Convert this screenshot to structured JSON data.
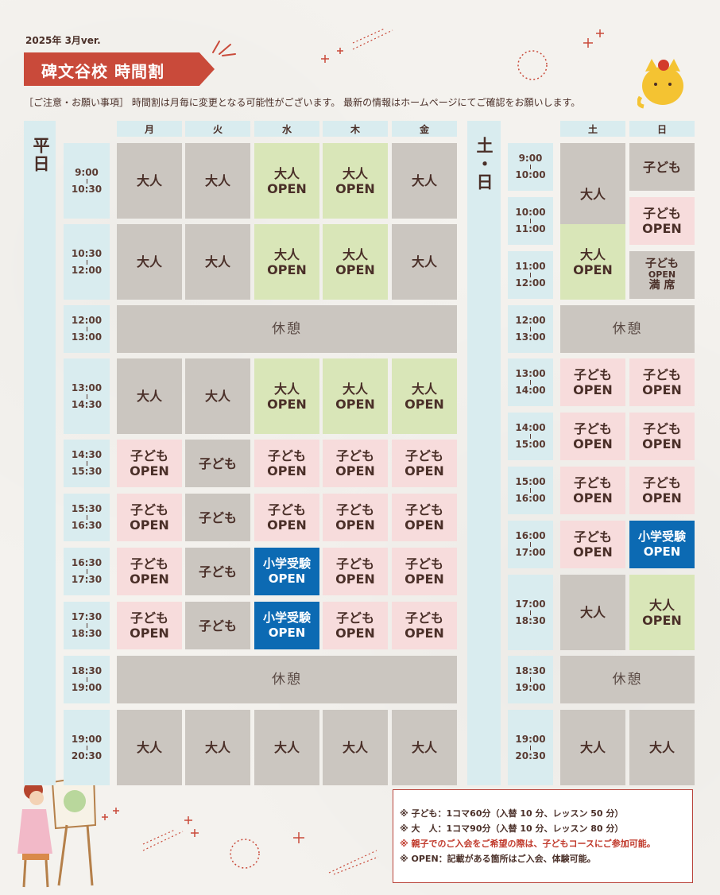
{
  "header": {
    "version": "2025年 3月ver.",
    "title": "碑文谷校 時間割",
    "notice": "［ご注意・お願い事項］ 時間割は月毎に変更となる可能性がございます。 最新の情報はホームページにてご確認をお願いします。"
  },
  "weekday": {
    "label": "平日",
    "days": [
      "月",
      "火",
      "水",
      "木",
      "金"
    ],
    "times": [
      [
        "9:00",
        "10:30"
      ],
      [
        "10:30",
        "12:00"
      ],
      [
        "12:00",
        "13:00"
      ],
      [
        "13:00",
        "14:30"
      ],
      [
        "14:30",
        "15:30"
      ],
      [
        "15:30",
        "16:30"
      ],
      [
        "16:30",
        "17:30"
      ],
      [
        "17:30",
        "18:30"
      ],
      [
        "18:30",
        "19:00"
      ],
      [
        "19:00",
        "20:30"
      ]
    ],
    "rest": "休憩",
    "rows": [
      [
        {
          "t": "大人",
          "c": "gray"
        },
        {
          "t": "大人",
          "c": "gray"
        },
        {
          "t": "大人",
          "t2": "OPEN",
          "c": "green"
        },
        {
          "t": "大人",
          "t2": "OPEN",
          "c": "green"
        },
        {
          "t": "大人",
          "c": "gray"
        }
      ],
      [
        {
          "t": "大人",
          "c": "gray"
        },
        {
          "t": "大人",
          "c": "gray"
        },
        {
          "t": "大人",
          "t2": "OPEN",
          "c": "green"
        },
        {
          "t": "大人",
          "t2": "OPEN",
          "c": "green"
        },
        {
          "t": "大人",
          "c": "gray"
        }
      ],
      [],
      [
        {
          "t": "大人",
          "c": "gray"
        },
        {
          "t": "大人",
          "c": "gray"
        },
        {
          "t": "大人",
          "t2": "OPEN",
          "c": "green"
        },
        {
          "t": "大人",
          "t2": "OPEN",
          "c": "green"
        },
        {
          "t": "大人",
          "t2": "OPEN",
          "c": "green"
        }
      ],
      [
        {
          "t": "子ども",
          "t2": "OPEN",
          "c": "pink"
        },
        {
          "t": "子ども",
          "c": "gray"
        },
        {
          "t": "子ども",
          "t2": "OPEN",
          "c": "pink"
        },
        {
          "t": "子ども",
          "t2": "OPEN",
          "c": "pink"
        },
        {
          "t": "子ども",
          "t2": "OPEN",
          "c": "pink"
        }
      ],
      [
        {
          "t": "子ども",
          "t2": "OPEN",
          "c": "pink"
        },
        {
          "t": "子ども",
          "c": "gray"
        },
        {
          "t": "子ども",
          "t2": "OPEN",
          "c": "pink"
        },
        {
          "t": "子ども",
          "t2": "OPEN",
          "c": "pink"
        },
        {
          "t": "子ども",
          "t2": "OPEN",
          "c": "pink"
        }
      ],
      [
        {
          "t": "子ども",
          "t2": "OPEN",
          "c": "pink"
        },
        {
          "t": "子ども",
          "c": "gray"
        },
        {
          "t": "小学受験",
          "t2": "OPEN",
          "c": "blue"
        },
        {
          "t": "子ども",
          "t2": "OPEN",
          "c": "pink"
        },
        {
          "t": "子ども",
          "t2": "OPEN",
          "c": "pink"
        }
      ],
      [
        {
          "t": "子ども",
          "t2": "OPEN",
          "c": "pink"
        },
        {
          "t": "子ども",
          "c": "gray"
        },
        {
          "t": "小学受験",
          "t2": "OPEN",
          "c": "blue"
        },
        {
          "t": "子ども",
          "t2": "OPEN",
          "c": "pink"
        },
        {
          "t": "子ども",
          "t2": "OPEN",
          "c": "pink"
        }
      ],
      [],
      [
        {
          "t": "大人",
          "c": "gray"
        },
        {
          "t": "大人",
          "c": "gray"
        },
        {
          "t": "大人",
          "c": "gray"
        },
        {
          "t": "大人",
          "c": "gray"
        },
        {
          "t": "大人",
          "c": "gray"
        }
      ]
    ]
  },
  "weekend": {
    "label": "土・日",
    "days": [
      "土",
      "日"
    ],
    "times": [
      [
        "9:00",
        "10:00"
      ],
      [
        "10:00",
        "11:00"
      ],
      [
        "11:00",
        "12:00"
      ],
      [
        "12:00",
        "13:00"
      ],
      [
        "13:00",
        "14:00"
      ],
      [
        "14:00",
        "15:00"
      ],
      [
        "15:00",
        "16:00"
      ],
      [
        "16:00",
        "17:00"
      ],
      [
        "17:00",
        "18:30"
      ],
      [
        "18:30",
        "19:00"
      ],
      [
        "19:00",
        "20:30"
      ]
    ],
    "rest": "休憩",
    "cells": [
      {
        "t": "大人",
        "c": "gray"
      },
      {
        "t": "子ども",
        "c": "gray"
      },
      {
        "t": "子ども",
        "t2": "OPEN",
        "c": "pink"
      },
      {
        "t": "大人",
        "t2": "OPEN",
        "c": "green"
      },
      {
        "t": "子ども",
        "t2": "OPEN",
        "t3": "満 席",
        "c": "gray"
      },
      {
        "t": "子ども",
        "t2": "OPEN",
        "c": "pink"
      },
      {
        "t": "子ども",
        "t2": "OPEN",
        "c": "pink"
      },
      {
        "t": "子ども",
        "t2": "OPEN",
        "c": "pink"
      },
      {
        "t": "子ども",
        "t2": "OPEN",
        "c": "pink"
      },
      {
        "t": "子ども",
        "t2": "OPEN",
        "c": "pink"
      },
      {
        "t": "子ども",
        "t2": "OPEN",
        "c": "pink"
      },
      {
        "t": "子ども",
        "t2": "OPEN",
        "c": "pink"
      },
      {
        "t": "小学受験",
        "t2": "OPEN",
        "c": "blue"
      },
      {
        "t": "大人",
        "c": "gray"
      },
      {
        "t": "大人",
        "t2": "OPEN",
        "c": "green"
      },
      {
        "t": "大人",
        "c": "gray"
      },
      {
        "t": "大人",
        "c": "gray"
      }
    ]
  },
  "notes": [
    "※ 子ども：1コマ60分（入替 10 分、レッスン 50 分）",
    "※ 大　人：1コマ90分（入替 10 分、レッスン 80 分）",
    "※ 親子でのご入会をご希望の際は、子どもコースにご参加可能。",
    "※ OPEN：記載がある箇所はご入会、体験可能。"
  ]
}
